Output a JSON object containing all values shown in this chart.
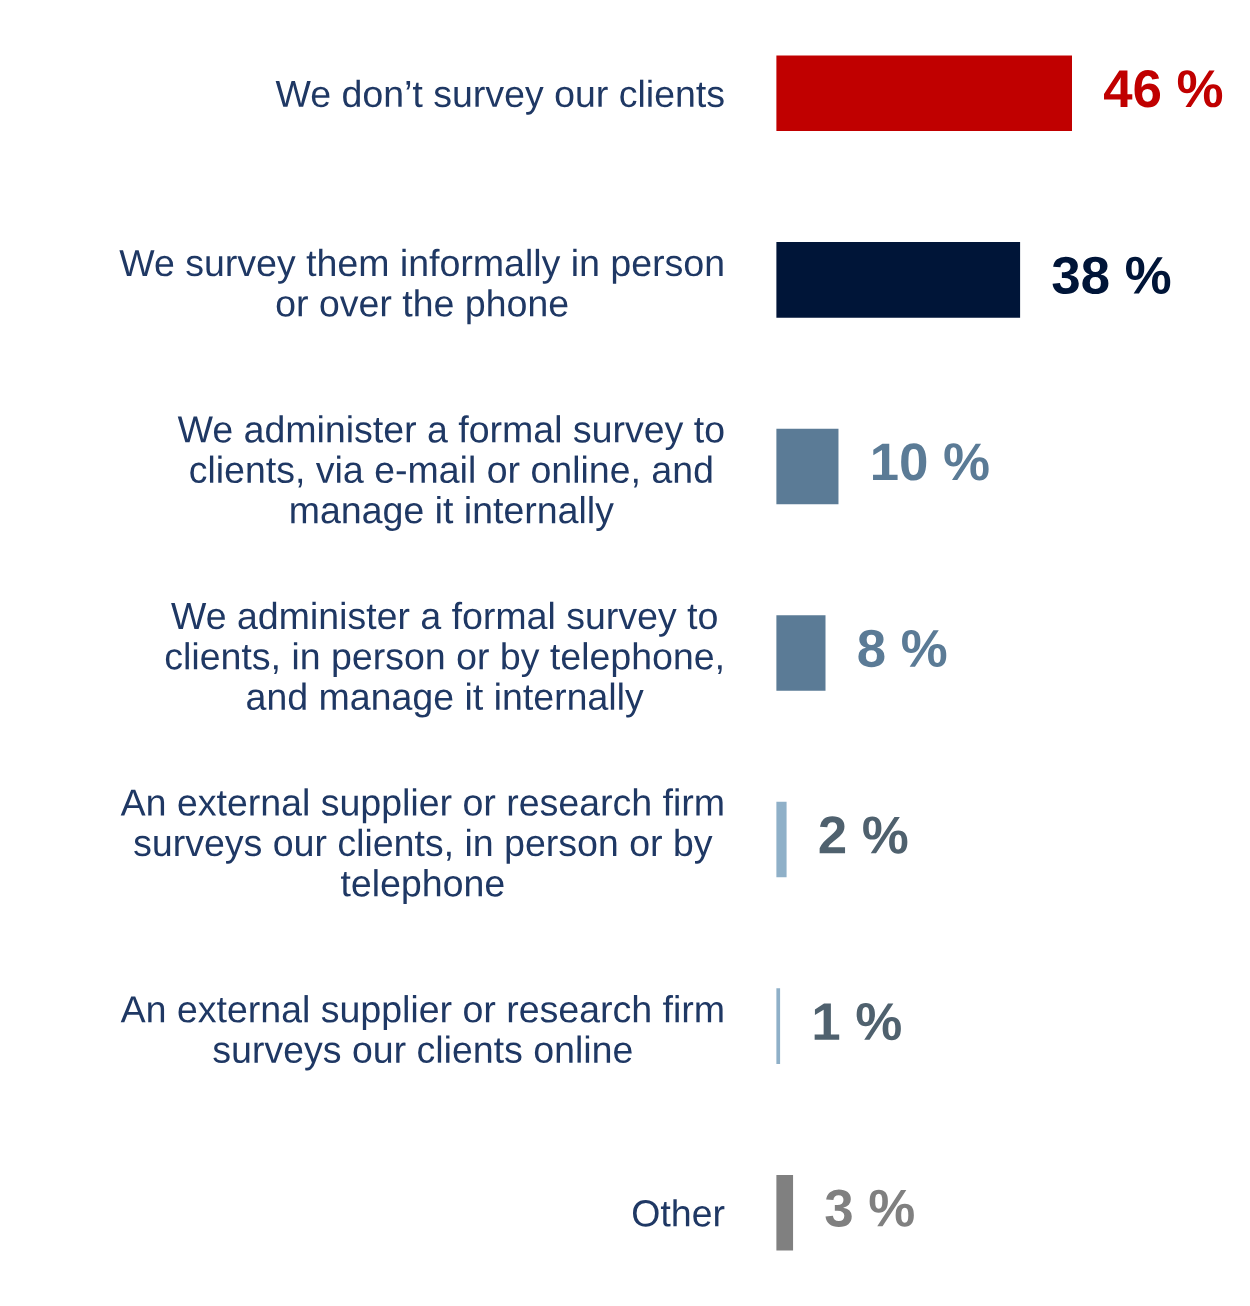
{
  "chart_data": {
    "type": "bar",
    "orientation": "horizontal",
    "categories": [
      "We don’t survey our clients",
      "We survey them informally in person\nor over the phone",
      "We administer a formal survey to\nclients, via e-mail or online, and\nmanage it internally",
      "We administer a formal survey to\nclients, in person or by telephone,\nand manage it internally",
      "An external supplier or research firm\nsurveys our clients, in person or by\ntelephone",
      "An external supplier or research firm\nsurveys our clients online",
      "Other"
    ],
    "values": [
      46,
      38,
      10,
      8,
      2,
      1,
      3
    ],
    "colors": [
      "#c00000",
      "#001538",
      "#5b7b96",
      "#5b7b96",
      "#8fb0c8",
      "#8fb0c8",
      "#808080"
    ],
    "value_labels": [
      "46 %",
      "38 %",
      "10 %",
      "8 %",
      "2 %",
      "1 %",
      "3 %"
    ],
    "grid": false,
    "legend": false
  }
}
